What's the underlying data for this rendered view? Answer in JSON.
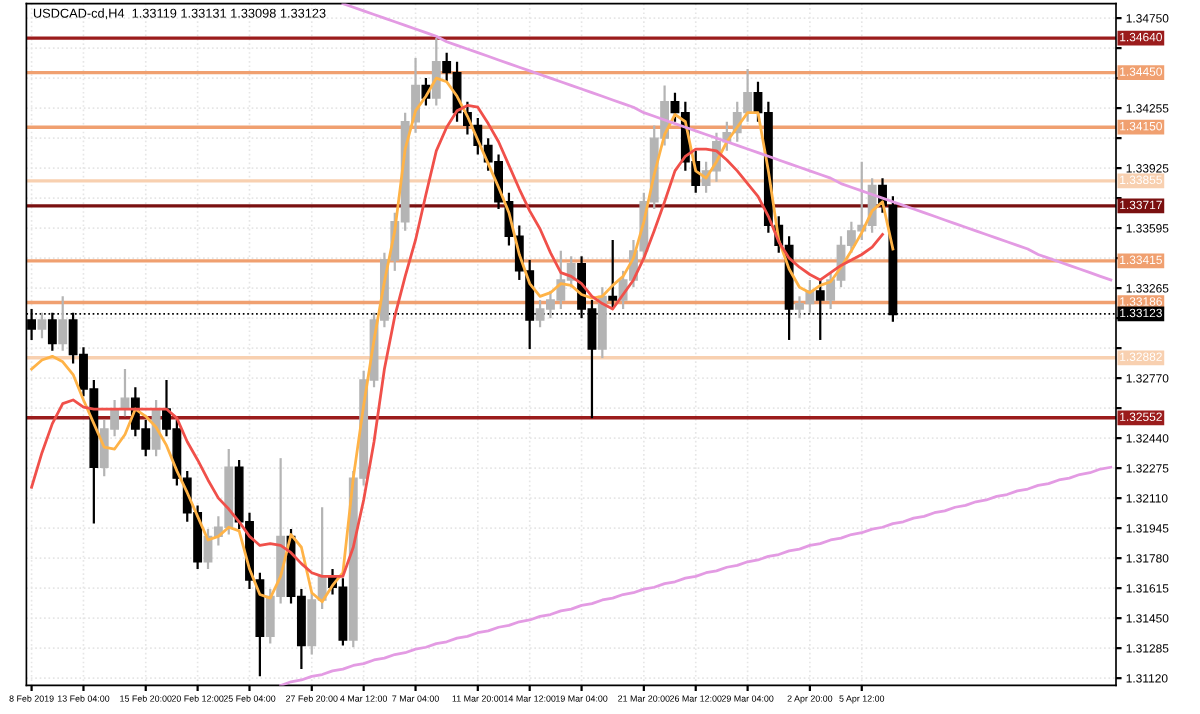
{
  "chart_data": {
    "type": "candlestick",
    "title": "USDCAD-cd,H4  1.33119 1.33131 1.33098 1.33123",
    "categories": [
      "8 Feb 2019",
      null,
      null,
      null,
      null,
      "13 Feb 04:00",
      null,
      null,
      null,
      null,
      null,
      "15 Feb 20:00",
      null,
      null,
      null,
      null,
      "20 Feb 12:00",
      null,
      null,
      null,
      null,
      "25 Feb 04:00",
      null,
      null,
      null,
      null,
      null,
      "27 Feb 20:00",
      null,
      null,
      null,
      null,
      "4 Mar 12:00",
      null,
      null,
      null,
      null,
      "7 Mar 04:00",
      null,
      null,
      null,
      null,
      null,
      "11 Mar 20:00",
      null,
      null,
      null,
      null,
      "14 Mar 12:00",
      null,
      null,
      null,
      null,
      "19 Mar 04:00",
      null,
      null,
      null,
      null,
      null,
      "21 Mar 20:00",
      null,
      null,
      null,
      null,
      "26 Mar 12:00",
      null,
      null,
      null,
      null,
      "29 Mar 04:00",
      null,
      null,
      null,
      null,
      null,
      "2 Apr 20:00",
      null,
      null,
      null,
      null,
      "5 Apr 12:00",
      null,
      null,
      null,
      null,
      null,
      null,
      null,
      null,
      null,
      null,
      null,
      null,
      null,
      null,
      null,
      null,
      null,
      null,
      null,
      null,
      null,
      null,
      null,
      null
    ],
    "ohlc": [
      [
        1.3309,
        1.3315,
        1.3298,
        1.3304
      ],
      [
        1.3304,
        1.3313,
        1.3299,
        1.3309
      ],
      [
        1.3309,
        1.3313,
        1.3292,
        1.3296
      ],
      [
        1.3296,
        1.3322,
        1.3292,
        1.3309
      ],
      [
        1.3309,
        1.3313,
        1.3285,
        1.329
      ],
      [
        1.329,
        1.3294,
        1.3267,
        1.3271
      ],
      [
        1.3271,
        1.3276,
        1.3197,
        1.3228
      ],
      [
        1.3228,
        1.3254,
        1.3223,
        1.3249
      ],
      [
        1.3249,
        1.3265,
        1.3245,
        1.326
      ],
      [
        1.326,
        1.3282,
        1.3256,
        1.3266
      ],
      [
        1.3266,
        1.3272,
        1.3245,
        1.3249
      ],
      [
        1.3249,
        1.3254,
        1.3234,
        1.3238
      ],
      [
        1.3238,
        1.3265,
        1.3234,
        1.326
      ],
      [
        1.326,
        1.3276,
        1.3245,
        1.3249
      ],
      [
        1.3249,
        1.3254,
        1.3218,
        1.3222
      ],
      [
        1.3222,
        1.3226,
        1.3198,
        1.3203
      ],
      [
        1.3203,
        1.3207,
        1.3172,
        1.3176
      ],
      [
        1.3176,
        1.3194,
        1.3172,
        1.319
      ],
      [
        1.319,
        1.3201,
        1.3185,
        1.3195
      ],
      [
        1.3195,
        1.3238,
        1.3191,
        1.3228
      ],
      [
        1.3228,
        1.3232,
        1.3194,
        1.3198
      ],
      [
        1.3198,
        1.3203,
        1.3161,
        1.3166
      ],
      [
        1.3166,
        1.317,
        1.3113,
        1.3135
      ],
      [
        1.3135,
        1.3161,
        1.3131,
        1.3157
      ],
      [
        1.3157,
        1.3233,
        1.3153,
        1.319
      ],
      [
        1.319,
        1.3194,
        1.3153,
        1.3157
      ],
      [
        1.3157,
        1.3161,
        1.3117,
        1.313
      ],
      [
        1.313,
        1.3159,
        1.3125,
        1.3155
      ],
      [
        1.3155,
        1.3206,
        1.315,
        1.3168
      ],
      [
        1.3168,
        1.3172,
        1.3158,
        1.3162
      ],
      [
        1.3162,
        1.3167,
        1.313,
        1.3133
      ],
      [
        1.3133,
        1.3226,
        1.3129,
        1.3222
      ],
      [
        1.3222,
        1.3281,
        1.3218,
        1.3276
      ],
      [
        1.3276,
        1.3313,
        1.3272,
        1.3309
      ],
      [
        1.3309,
        1.3346,
        1.3305,
        1.3342
      ],
      [
        1.3342,
        1.3368,
        1.3336,
        1.3363
      ],
      [
        1.3363,
        1.3423,
        1.3358,
        1.3418
      ],
      [
        1.3418,
        1.3453,
        1.3412,
        1.3438
      ],
      [
        1.3438,
        1.3442,
        1.3427,
        1.3431
      ],
      [
        1.3431,
        1.3464,
        1.3427,
        1.3451
      ],
      [
        1.3451,
        1.3456,
        1.344,
        1.3445
      ],
      [
        1.3445,
        1.3451,
        1.3418,
        1.3423
      ],
      [
        1.3423,
        1.3429,
        1.3411,
        1.3416
      ],
      [
        1.3416,
        1.342,
        1.34,
        1.3405
      ],
      [
        1.3405,
        1.3409,
        1.3391,
        1.3396
      ],
      [
        1.3396,
        1.34,
        1.337,
        1.3374
      ],
      [
        1.3374,
        1.3379,
        1.335,
        1.3355
      ],
      [
        1.3355,
        1.3361,
        1.3331,
        1.3336
      ],
      [
        1.3336,
        1.3342,
        1.3293,
        1.3309
      ],
      [
        1.3309,
        1.332,
        1.3305,
        1.3315
      ],
      [
        1.3315,
        1.3325,
        1.331,
        1.332
      ],
      [
        1.332,
        1.3347,
        1.3315,
        1.3331
      ],
      [
        1.3331,
        1.3344,
        1.3327,
        1.334
      ],
      [
        1.334,
        1.3344,
        1.331,
        1.3315
      ],
      [
        1.3315,
        1.332,
        1.3255,
        1.3293
      ],
      [
        1.3293,
        1.3327,
        1.3288,
        1.3322
      ],
      [
        1.3322,
        1.3353,
        1.3315,
        1.332
      ],
      [
        1.332,
        1.3336,
        1.3315,
        1.3331
      ],
      [
        1.3331,
        1.3353,
        1.3327,
        1.3347
      ],
      [
        1.3347,
        1.3379,
        1.3342,
        1.3374
      ],
      [
        1.3374,
        1.3416,
        1.337,
        1.3409
      ],
      [
        1.3409,
        1.3438,
        1.3405,
        1.3429
      ],
      [
        1.3429,
        1.3434,
        1.3418,
        1.3423
      ],
      [
        1.3423,
        1.3429,
        1.3391,
        1.3396
      ],
      [
        1.3396,
        1.3402,
        1.3379,
        1.3383
      ],
      [
        1.3383,
        1.3396,
        1.3379,
        1.3391
      ],
      [
        1.3391,
        1.3412,
        1.3385,
        1.3407
      ],
      [
        1.3407,
        1.3418,
        1.3402,
        1.3412
      ],
      [
        1.3412,
        1.3429,
        1.3407,
        1.3423
      ],
      [
        1.3423,
        1.3447,
        1.3418,
        1.3434
      ],
      [
        1.3434,
        1.344,
        1.3418,
        1.3423
      ],
      [
        1.3423,
        1.3429,
        1.3357,
        1.3361
      ],
      [
        1.3361,
        1.3366,
        1.3346,
        1.335
      ],
      [
        1.335,
        1.3355,
        1.3298,
        1.3315
      ],
      [
        1.3315,
        1.3322,
        1.331,
        1.3318
      ],
      [
        1.3318,
        1.3331,
        1.3313,
        1.3325
      ],
      [
        1.3325,
        1.3331,
        1.3298,
        1.332
      ],
      [
        1.332,
        1.3335,
        1.3315,
        1.3331
      ],
      [
        1.3331,
        1.3355,
        1.3327,
        1.335
      ],
      [
        1.335,
        1.3363,
        1.3346,
        1.3358
      ],
      [
        1.3358,
        1.3396,
        1.3353,
        1.3361
      ],
      [
        1.3361,
        1.3387,
        1.3357,
        1.3383
      ],
      [
        1.3383,
        1.3387,
        1.3368,
        1.3372
      ],
      [
        1.3372,
        1.3377,
        1.3308,
        1.3312
      ],
      null,
      null,
      null,
      null,
      null,
      null,
      null,
      null,
      null,
      null,
      null,
      null,
      null,
      null,
      null,
      null,
      null,
      null,
      null,
      null,
      null
    ],
    "colors": [
      "#000000",
      "#b4b4b4",
      "#000000",
      "#b4b4b4",
      "#000000",
      "#000000",
      "#000000",
      "#b4b4b4",
      "#b4b4b4",
      "#b4b4b4",
      "#000000",
      "#000000",
      "#b4b4b4",
      "#000000",
      "#000000",
      "#000000",
      "#000000",
      "#b4b4b4",
      "#b4b4b4",
      "#b4b4b4",
      "#000000",
      "#000000",
      "#000000",
      "#b4b4b4",
      "#b4b4b4",
      "#000000",
      "#000000",
      "#b4b4b4",
      "#b4b4b4",
      "#000000",
      "#000000",
      "#b4b4b4",
      "#b4b4b4",
      "#b4b4b4",
      "#b4b4b4",
      "#b4b4b4",
      "#b4b4b4",
      "#b4b4b4",
      "#000000",
      "#b4b4b4",
      "#000000",
      "#000000",
      "#000000",
      "#000000",
      "#000000",
      "#000000",
      "#000000",
      "#000000",
      "#000000",
      "#b4b4b4",
      "#b4b4b4",
      "#b4b4b4",
      "#b4b4b4",
      "#000000",
      "#000000",
      "#b4b4b4",
      "#000000",
      "#b4b4b4",
      "#b4b4b4",
      "#b4b4b4",
      "#b4b4b4",
      "#b4b4b4",
      "#000000",
      "#000000",
      "#000000",
      "#b4b4b4",
      "#b4b4b4",
      "#b4b4b4",
      "#b4b4b4",
      "#b4b4b4",
      "#000000",
      "#000000",
      "#000000",
      "#000000",
      "#b4b4b4",
      "#b4b4b4",
      "#000000",
      "#b4b4b4",
      "#b4b4b4",
      "#b4b4b4",
      "#b4b4b4",
      "#b4b4b4",
      "#000000",
      "#000000",
      null,
      null,
      null,
      null,
      null,
      null,
      null,
      null,
      null,
      null,
      null,
      null,
      null,
      null,
      null,
      null,
      null,
      null,
      null,
      null,
      null
    ],
    "series": [
      {
        "type": "line",
        "color": "#ffb347",
        "values": [
          1.3282,
          1.3287,
          1.3289,
          1.3286,
          1.3279,
          1.3265,
          1.3252,
          1.3239,
          1.3238,
          1.3246,
          1.326,
          1.3256,
          1.325,
          1.324,
          1.3226,
          1.3214,
          1.3201,
          1.3188,
          1.319,
          1.3195,
          1.3193,
          1.3172,
          1.3158,
          1.3156,
          1.3168,
          1.3191,
          1.3184,
          1.3159,
          1.3154,
          1.3163,
          1.317,
          1.3222,
          1.3262,
          1.3298,
          1.333,
          1.3358,
          1.3403,
          1.3424,
          1.3432,
          1.3442,
          1.344,
          1.3432,
          1.3421,
          1.3408,
          1.3395,
          1.3382,
          1.3368,
          1.3345,
          1.3329,
          1.3322,
          1.3324,
          1.3329,
          1.3328,
          1.3323,
          1.3321,
          1.3322,
          1.3328,
          1.3333,
          1.3343,
          1.3363,
          1.3389,
          1.3411,
          1.3422,
          1.3418,
          1.3391,
          1.3387,
          1.3396,
          1.3407,
          1.3415,
          1.3423,
          1.3423,
          1.3391,
          1.3353,
          1.3337,
          1.3327,
          1.3324,
          1.3328,
          1.333,
          1.3338,
          1.3347,
          1.3357,
          1.3369,
          1.3374,
          1.3348,
          null,
          null,
          null,
          null,
          null,
          null,
          null,
          null,
          null,
          null,
          null,
          null,
          null,
          null,
          null,
          null,
          null,
          null,
          null,
          null,
          null
        ]
      },
      {
        "type": "line",
        "color": "#f0504a",
        "values": [
          1.3217,
          1.3236,
          1.3252,
          1.3263,
          1.3265,
          1.3261,
          1.326,
          1.326,
          1.326,
          1.326,
          1.326,
          1.326,
          1.326,
          1.326,
          1.3255,
          1.3242,
          1.3232,
          1.3221,
          1.3211,
          1.3205,
          1.3198,
          1.319,
          1.3185,
          1.3186,
          1.3185,
          1.3181,
          1.3175,
          1.317,
          1.3168,
          1.3168,
          1.3168,
          1.3184,
          1.321,
          1.3242,
          1.3282,
          1.3311,
          1.3333,
          1.3353,
          1.3378,
          1.3402,
          1.3415,
          1.3424,
          1.3427,
          1.3426,
          1.3417,
          1.3407,
          1.3394,
          1.3381,
          1.3369,
          1.3359,
          1.3346,
          1.3335,
          1.3333,
          1.3329,
          1.3322,
          1.3318,
          1.3315,
          1.3323,
          1.3331,
          1.3343,
          1.3358,
          1.3374,
          1.3391,
          1.3399,
          1.3403,
          1.3403,
          1.3402,
          1.3397,
          1.3391,
          1.3384,
          1.3377,
          1.3366,
          1.3352,
          1.3343,
          1.3338,
          1.3334,
          1.3331,
          1.3335,
          1.3339,
          1.3342,
          1.3345,
          1.3349,
          1.3356,
          null,
          null,
          null,
          null,
          null,
          null,
          null,
          null,
          null,
          null,
          null,
          null,
          null,
          null,
          null,
          null,
          null,
          null,
          null,
          null,
          null,
          null
        ]
      },
      {
        "type": "line",
        "color": "#e39be3",
        "values": [
          null,
          null,
          null,
          null,
          null,
          null,
          null,
          null,
          null,
          null,
          null,
          null,
          null,
          null,
          null,
          null,
          null,
          null,
          null,
          null,
          null,
          null,
          null,
          null,
          null,
          null,
          null,
          null,
          null,
          null,
          1.3483,
          1.3481,
          1.3479,
          1.3477,
          1.3475,
          1.3473,
          1.3471,
          1.3469,
          1.3467,
          1.3465,
          1.3462,
          1.346,
          1.3458,
          1.3456,
          1.3454,
          1.3452,
          1.345,
          1.3448,
          1.3446,
          1.3444,
          1.3442,
          1.344,
          1.3438,
          1.3436,
          1.3434,
          1.3432,
          1.343,
          1.3428,
          1.3426,
          1.3423,
          1.3421,
          1.3419,
          1.3417,
          1.3415,
          1.3413,
          1.3411,
          1.3409,
          1.3407,
          1.3405,
          1.3403,
          1.3401,
          1.3399,
          1.3397,
          1.3395,
          1.3393,
          1.3391,
          1.3389,
          1.3387,
          1.3384,
          1.3382,
          1.338,
          1.3378,
          1.3376,
          1.3374,
          1.3372,
          1.337,
          1.3368,
          1.3366,
          1.3364,
          1.3362,
          1.336,
          1.3358,
          1.3356,
          1.3354,
          1.3352,
          1.335,
          1.3348,
          1.3345,
          1.3343,
          1.3341,
          1.3339,
          1.3337,
          1.3335,
          1.3333,
          1.3331
        ]
      },
      {
        "type": "line",
        "color": "#e39be3",
        "values": [
          null,
          null,
          null,
          null,
          null,
          null,
          null,
          null,
          null,
          null,
          null,
          null,
          null,
          null,
          null,
          null,
          null,
          null,
          null,
          null,
          null,
          null,
          null,
          null,
          1.3108,
          1.311,
          1.3111,
          1.3113,
          1.3114,
          1.3116,
          1.3117,
          1.3119,
          1.312,
          1.3122,
          1.3123,
          1.3125,
          1.3126,
          1.3128,
          1.3129,
          1.3131,
          1.3132,
          1.3134,
          1.3135,
          1.3137,
          1.3138,
          1.314,
          1.3141,
          1.3143,
          1.3144,
          1.3146,
          1.3147,
          1.3149,
          1.315,
          1.3152,
          1.3153,
          1.3155,
          1.3156,
          1.3158,
          1.3159,
          1.3161,
          1.3162,
          1.3164,
          1.3165,
          1.3167,
          1.3168,
          1.317,
          1.3171,
          1.3173,
          1.3174,
          1.3176,
          1.3177,
          1.3179,
          1.318,
          1.3182,
          1.3183,
          1.3185,
          1.3186,
          1.3188,
          1.3189,
          1.3191,
          1.3192,
          1.3194,
          1.3195,
          1.3197,
          1.3198,
          1.32,
          1.3201,
          1.3203,
          1.3204,
          1.3206,
          1.3207,
          1.3209,
          1.321,
          1.3212,
          1.3213,
          1.3215,
          1.3216,
          1.3218,
          1.3219,
          1.3221,
          1.3222,
          1.3224,
          1.3225,
          1.3227,
          1.3228
        ]
      }
    ],
    "ref_lines": [
      {
        "axis": "y",
        "value": 1.3464,
        "label": "1.34640",
        "color": "#9b1c1c"
      },
      {
        "axis": "y",
        "value": 1.3445,
        "label": "1.34450",
        "color": "#f0a070"
      },
      {
        "axis": "y",
        "value": 1.3415,
        "label": "1.34150",
        "color": "#f0a070"
      },
      {
        "axis": "y",
        "value": 1.33855,
        "label": "1.33855",
        "color": "#f8d0b0"
      },
      {
        "axis": "y",
        "value": 1.33717,
        "label": "1.33717",
        "color": "#7a1010"
      },
      {
        "axis": "y",
        "value": 1.33415,
        "label": "1.33415",
        "color": "#f0a070"
      },
      {
        "axis": "y",
        "value": 1.33186,
        "label": "1.33186",
        "color": "#f0a070"
      },
      {
        "axis": "y",
        "value": 1.33123,
        "label": "1.33123",
        "color": "#000000",
        "line_style": "dotted"
      },
      {
        "axis": "y",
        "value": 1.32882,
        "label": "1.32882",
        "color": "#f8d0b0"
      },
      {
        "axis": "y",
        "value": 1.32552,
        "label": "1.32552",
        "color": "#9b1c1c"
      }
    ],
    "ylim": [
      1.3108,
      1.3483
    ],
    "yticks": [
      {
        "value": 1.3475,
        "label": "1.34750"
      },
      {
        "value": 1.34585,
        "label": null
      },
      {
        "value": 1.3442,
        "label": null
      },
      {
        "value": 1.34255,
        "label": "1.34255"
      },
      {
        "value": 1.3409,
        "label": null
      },
      {
        "value": 1.33925,
        "label": "1.33925"
      },
      {
        "value": 1.3376,
        "label": null
      },
      {
        "value": 1.33595,
        "label": "1.33595"
      },
      {
        "value": 1.3343,
        "label": null
      },
      {
        "value": 1.33265,
        "label": "1.33265"
      },
      {
        "value": 1.331,
        "label": null
      },
      {
        "value": 1.32935,
        "label": null
      },
      {
        "value": 1.3277,
        "label": "1.32770"
      },
      {
        "value": 1.32605,
        "label": null
      },
      {
        "value": 1.3244,
        "label": "1.32440"
      },
      {
        "value": 1.32275,
        "label": "1.32275"
      },
      {
        "value": 1.3211,
        "label": "1.32110"
      },
      {
        "value": 1.31945,
        "label": "1.31945"
      },
      {
        "value": 1.3178,
        "label": "1.31780"
      },
      {
        "value": 1.31615,
        "label": "1.31615"
      },
      {
        "value": 1.3145,
        "label": "1.31450"
      },
      {
        "value": 1.31285,
        "label": "1.31285"
      },
      {
        "value": 1.3112,
        "label": "1.31120"
      }
    ],
    "grid": true,
    "line_style": "solid"
  }
}
